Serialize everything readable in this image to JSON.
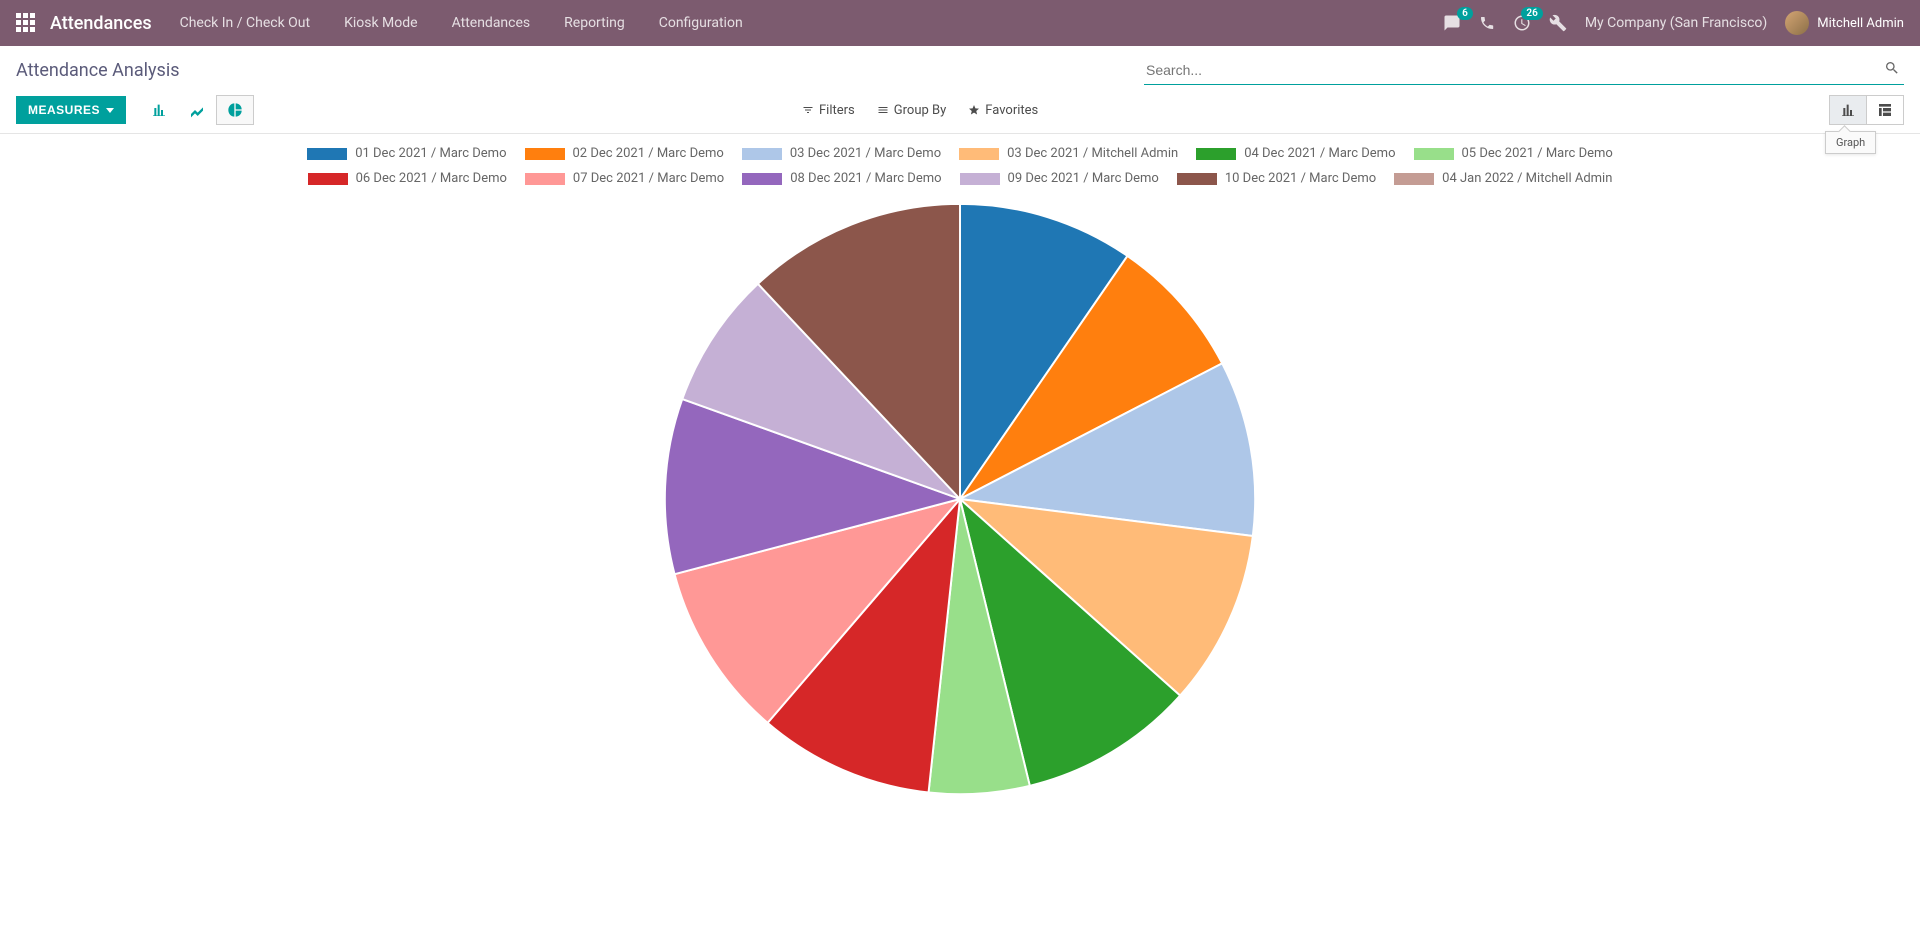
{
  "nav": {
    "brand": "Attendances",
    "menu": [
      "Check In / Check Out",
      "Kiosk Mode",
      "Attendances",
      "Reporting",
      "Configuration"
    ],
    "messages_badge": "6",
    "activities_badge": "26",
    "company": "My Company (San Francisco)",
    "user": "Mitchell Admin"
  },
  "page": {
    "title": "Attendance Analysis",
    "search_placeholder": "Search...",
    "measures_label": "MEASURES",
    "filters_label": "Filters",
    "groupby_label": "Group By",
    "favorites_label": "Favorites",
    "graph_tooltip": "Graph"
  },
  "chart": {
    "type": "pie",
    "background_color": "#ffffff",
    "stroke_color": "#ffffff",
    "stroke_width": 2,
    "radius": 300,
    "legend_swatch_w": 40,
    "legend_swatch_h": 12,
    "slices": [
      {
        "label": "01 Dec 2021 / Marc Demo",
        "color": "#1f77b4",
        "value": 9.6
      },
      {
        "label": "02 Dec 2021 / Marc Demo",
        "color": "#ff7f0e",
        "value": 7.8
      },
      {
        "label": "03 Dec 2021 / Marc Demo",
        "color": "#aec7e8",
        "value": 9.6
      },
      {
        "label": "03 Dec 2021 / Mitchell Admin",
        "color": "#ffbb78",
        "value": 9.6
      },
      {
        "label": "04 Dec 2021 / Marc Demo",
        "color": "#2ca02c",
        "value": 9.6
      },
      {
        "label": "05 Dec 2021 / Marc Demo",
        "color": "#98df8a",
        "value": 5.5
      },
      {
        "label": "06 Dec 2021 / Marc Demo",
        "color": "#d62728",
        "value": 9.6
      },
      {
        "label": "07 Dec 2021 / Marc Demo",
        "color": "#ff9896",
        "value": 9.6
      },
      {
        "label": "08 Dec 2021 / Marc Demo",
        "color": "#9467bd",
        "value": 9.6
      },
      {
        "label": "09 Dec 2021 / Marc Demo",
        "color": "#c5b0d5",
        "value": 7.5
      },
      {
        "label": "10 Dec 2021 / Marc Demo",
        "color": "#8c564b",
        "value": 12.0
      },
      {
        "label": "04 Jan 2022 / Mitchell Admin",
        "color": "#c49c94",
        "value": 0.0
      }
    ]
  }
}
